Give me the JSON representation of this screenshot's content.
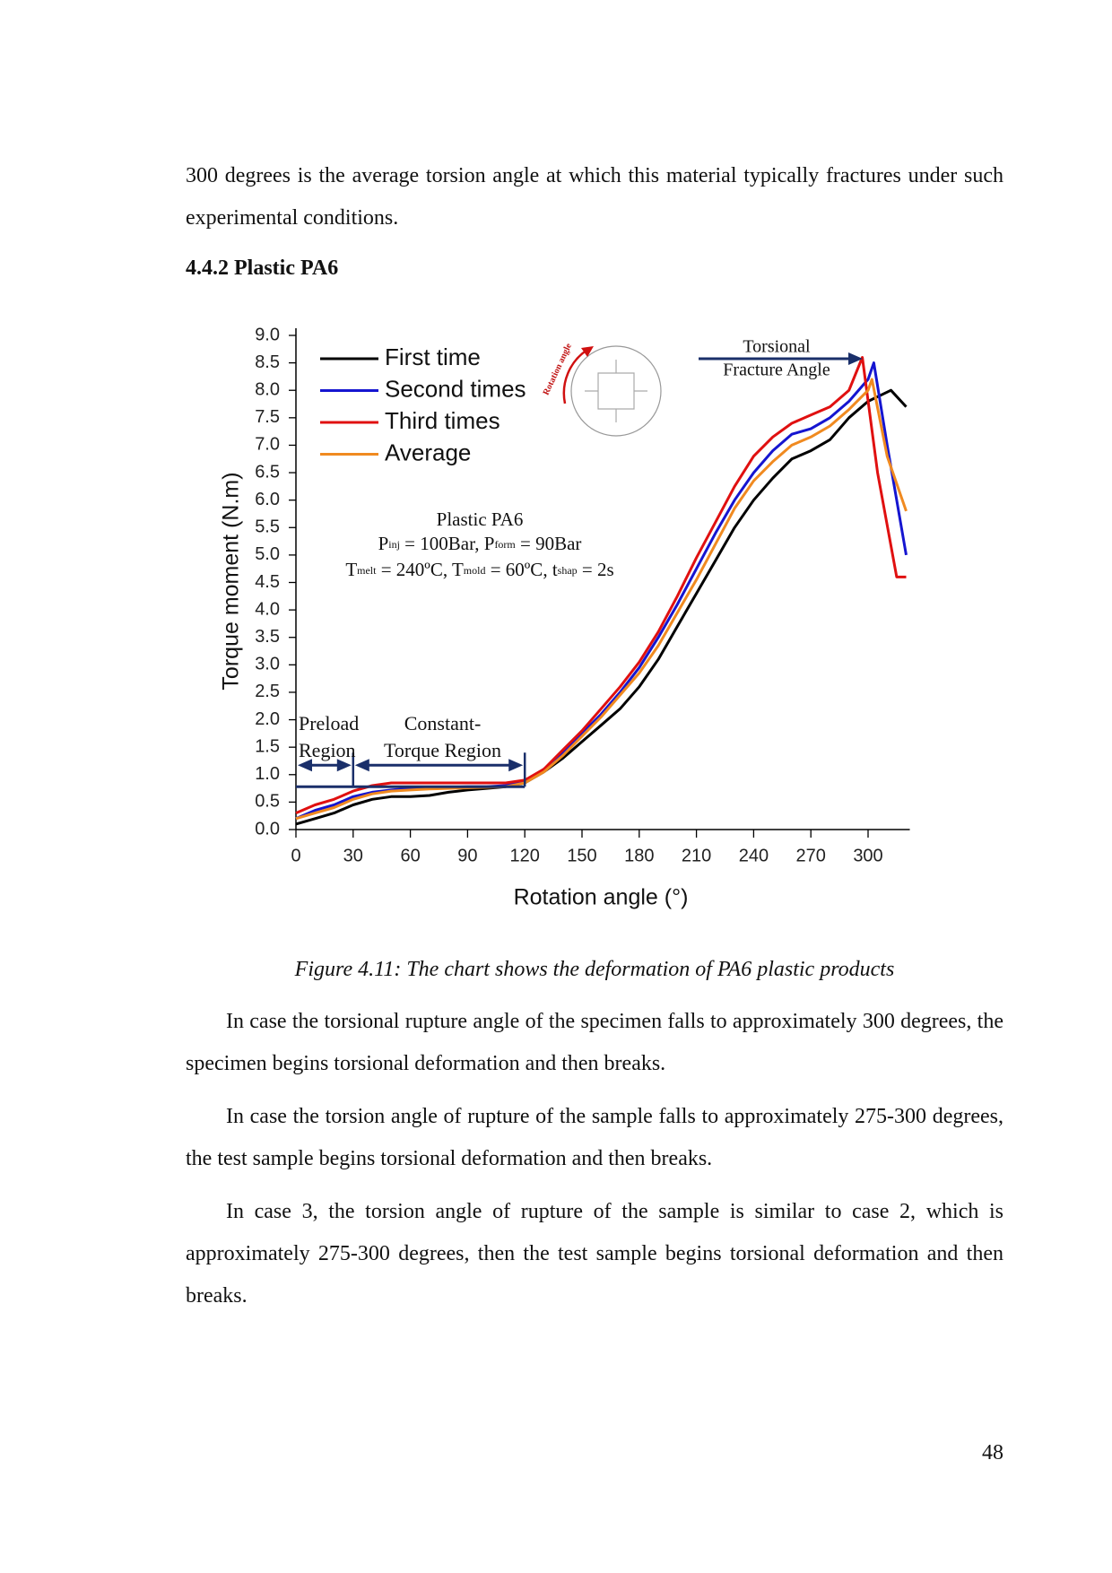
{
  "paragraphs_before": [
    "300 degrees is the average torsion angle at which this material typically fractures under such experimental conditions."
  ],
  "heading": "4.4.2 Plastic PA6",
  "chart_data": {
    "type": "line",
    "xlabel": "Rotation angle (°)",
    "ylabel": "Torque moment (N.m)",
    "xlim": [
      0,
      320
    ],
    "ylim": [
      0,
      9
    ],
    "xticks": [
      0,
      30,
      60,
      90,
      120,
      150,
      180,
      210,
      240,
      270,
      300
    ],
    "yticks": [
      {
        "value": 0,
        "label": "0.0"
      },
      0.5,
      {
        "value": 1,
        "label": "1.0"
      },
      1.5,
      {
        "value": 2,
        "label": "2.0"
      },
      2.5,
      {
        "value": 3,
        "label": "3.0"
      },
      3.5,
      {
        "value": 4,
        "label": "4.0"
      },
      4.5,
      {
        "value": 5,
        "label": "5.0"
      },
      5.5,
      {
        "value": 6,
        "label": "6.0"
      },
      6.5,
      {
        "value": 7,
        "label": "7.0"
      },
      7.5,
      {
        "value": 8,
        "label": "8.0"
      },
      8.5,
      {
        "value": 9,
        "label": "9.0"
      }
    ],
    "legend": "upper left",
    "series": [
      {
        "name": "First time",
        "color": "#000000",
        "x": [
          0,
          10,
          20,
          30,
          40,
          50,
          60,
          70,
          80,
          90,
          100,
          110,
          120,
          130,
          140,
          150,
          160,
          170,
          180,
          190,
          200,
          210,
          220,
          230,
          240,
          250,
          260,
          270,
          280,
          290,
          300,
          312,
          320
        ],
        "values": [
          0.1,
          0.2,
          0.3,
          0.45,
          0.55,
          0.6,
          0.6,
          0.62,
          0.68,
          0.72,
          0.75,
          0.78,
          0.85,
          1.05,
          1.3,
          1.6,
          1.9,
          2.2,
          2.6,
          3.1,
          3.7,
          4.3,
          4.9,
          5.5,
          6.0,
          6.4,
          6.75,
          6.9,
          7.1,
          7.5,
          7.8,
          8.0,
          7.7
        ]
      },
      {
        "name": "Second times",
        "color": "#1515d0",
        "x": [
          0,
          10,
          20,
          30,
          40,
          50,
          60,
          70,
          80,
          90,
          100,
          110,
          120,
          130,
          140,
          150,
          160,
          170,
          180,
          190,
          200,
          210,
          220,
          230,
          240,
          250,
          260,
          270,
          280,
          290,
          300,
          303,
          310,
          320
        ],
        "values": [
          0.2,
          0.35,
          0.45,
          0.6,
          0.68,
          0.72,
          0.75,
          0.76,
          0.77,
          0.78,
          0.78,
          0.8,
          0.88,
          1.1,
          1.4,
          1.75,
          2.1,
          2.5,
          2.95,
          3.5,
          4.1,
          4.75,
          5.4,
          6.0,
          6.5,
          6.9,
          7.2,
          7.3,
          7.5,
          7.8,
          8.2,
          8.5,
          7.0,
          5.0
        ]
      },
      {
        "name": "Third times",
        "color": "#e01010",
        "x": [
          0,
          10,
          20,
          30,
          40,
          50,
          60,
          70,
          80,
          90,
          100,
          110,
          120,
          130,
          140,
          150,
          160,
          170,
          180,
          190,
          200,
          210,
          220,
          230,
          240,
          250,
          260,
          270,
          280,
          290,
          297,
          305,
          315,
          320
        ],
        "values": [
          0.3,
          0.45,
          0.55,
          0.7,
          0.8,
          0.85,
          0.85,
          0.85,
          0.85,
          0.85,
          0.85,
          0.85,
          0.9,
          1.1,
          1.45,
          1.8,
          2.2,
          2.6,
          3.05,
          3.6,
          4.25,
          4.95,
          5.6,
          6.25,
          6.8,
          7.15,
          7.4,
          7.55,
          7.7,
          8.0,
          8.6,
          6.5,
          4.6,
          4.6
        ]
      },
      {
        "name": "Average",
        "color": "#f08a20",
        "x": [
          0,
          10,
          20,
          30,
          40,
          50,
          60,
          70,
          80,
          90,
          100,
          110,
          120,
          130,
          140,
          150,
          160,
          170,
          180,
          190,
          200,
          210,
          220,
          230,
          240,
          250,
          260,
          270,
          280,
          290,
          300,
          302,
          310,
          320
        ],
        "values": [
          0.2,
          0.3,
          0.4,
          0.55,
          0.65,
          0.7,
          0.72,
          0.74,
          0.75,
          0.76,
          0.77,
          0.78,
          0.85,
          1.05,
          1.35,
          1.7,
          2.05,
          2.45,
          2.85,
          3.35,
          3.95,
          4.55,
          5.2,
          5.85,
          6.35,
          6.7,
          7.0,
          7.15,
          7.35,
          7.65,
          8.0,
          8.2,
          6.8,
          5.8
        ]
      }
    ],
    "fracture_label": [
      "Torsional",
      "Fracture Angle"
    ],
    "icon_label": "Rotation angle",
    "specimen": "Plastic PA6",
    "conditions": [
      [
        "P",
        "inj",
        " = 100Bar, P",
        "form",
        " = 90Bar"
      ],
      [
        "T",
        "melt",
        " = 240ºC, T",
        "mold",
        " = 60ºC, t",
        "shap",
        " = 2s"
      ]
    ],
    "region_level": 0.78,
    "regions": [
      {
        "label": [
          "Preload",
          "Region"
        ],
        "from": 0,
        "to": 30
      },
      {
        "label": [
          "Constant-",
          "Torque Region"
        ],
        "from": 30,
        "to": 120
      }
    ]
  },
  "caption": "Figure 4.11: The chart shows the deformation of PA6 plastic products",
  "paragraphs_after": [
    "In case the torsional rupture angle of the specimen falls to approximately 300 degrees, the specimen begins torsional deformation and then breaks.",
    "In case the torsion angle of rupture of the sample falls to approximately 275-300 degrees, the test sample begins torsional deformation and then breaks.",
    "In case 3, the torsion angle of rupture of the sample is similar to case 2, which is approximately 275-300 degrees, then the test sample begins torsional deformation and then breaks."
  ],
  "page_number": "48"
}
